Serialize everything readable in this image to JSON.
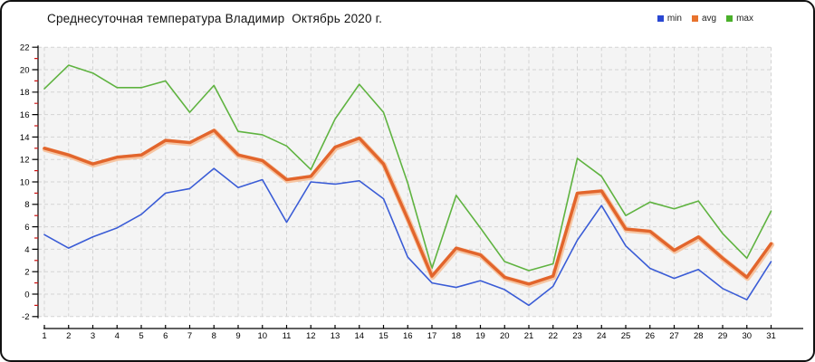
{
  "title": "Среднесуточная температура Владимир  Октябрь 2020 г.",
  "legend": {
    "items": [
      {
        "label": "min",
        "color": "#2947d2"
      },
      {
        "label": "avg",
        "color": "#e8732e"
      },
      {
        "label": "max",
        "color": "#4ab02a"
      }
    ]
  },
  "axes": {
    "y_tick_labels": [
      22,
      20,
      18,
      16,
      14,
      12,
      10,
      8,
      6,
      4,
      2,
      0,
      -2
    ],
    "y_minor_ticks": [
      21,
      19,
      17,
      15,
      13,
      11,
      9,
      7,
      5,
      3,
      1,
      -1
    ],
    "x_tick_labels": [
      1,
      2,
      3,
      4,
      5,
      6,
      7,
      8,
      9,
      10,
      11,
      12,
      13,
      14,
      15,
      16,
      17,
      18,
      19,
      20,
      21,
      22,
      23,
      24,
      25,
      26,
      27,
      28,
      29,
      30,
      31
    ],
    "axis_color": "#000000",
    "minor_tick_color": "#cc1111",
    "grid_color": "#d3d3d3",
    "plot_background": "#f4f4f4"
  },
  "chart_data": {
    "type": "line",
    "title": "Среднесуточная температура Владимир  Октябрь 2020 г.",
    "xlabel": "",
    "ylabel": "",
    "x": [
      1,
      2,
      3,
      4,
      5,
      6,
      7,
      8,
      9,
      10,
      11,
      12,
      13,
      14,
      15,
      16,
      17,
      18,
      19,
      20,
      21,
      22,
      23,
      24,
      25,
      26,
      27,
      28,
      29,
      30,
      31
    ],
    "ylim": [
      -2,
      22
    ],
    "ytick_step": 2,
    "grid": true,
    "legend_position": "top-right",
    "series": [
      {
        "name": "max",
        "color": "#5fb340",
        "width": 1.6,
        "values": [
          18.3,
          20.4,
          19.7,
          18.4,
          18.4,
          19.0,
          16.2,
          18.6,
          14.5,
          14.2,
          13.2,
          11.1,
          15.6,
          18.7,
          16.2,
          9.9,
          2.3,
          8.8,
          5.9,
          2.9,
          2.1,
          2.7,
          12.1,
          10.5,
          7.0,
          8.2,
          7.6,
          8.3,
          5.4,
          3.2,
          7.4
        ]
      },
      {
        "name": "min",
        "color": "#3a5cd6",
        "width": 1.6,
        "values": [
          5.3,
          4.1,
          5.1,
          5.9,
          7.1,
          9.0,
          9.4,
          11.2,
          9.5,
          10.2,
          6.4,
          10.0,
          9.8,
          10.1,
          8.5,
          3.3,
          1.0,
          0.6,
          1.2,
          0.4,
          -1.0,
          0.7,
          4.8,
          7.9,
          4.3,
          2.3,
          1.4,
          2.2,
          0.5,
          -0.5,
          2.9
        ]
      },
      {
        "name": "avg",
        "color": "#e2652c",
        "width": 3.4,
        "halo": "#f6c5a2",
        "values": [
          13.0,
          12.4,
          11.6,
          12.2,
          12.4,
          13.7,
          13.5,
          14.6,
          12.4,
          11.9,
          10.2,
          10.5,
          13.1,
          13.9,
          11.6,
          6.7,
          1.6,
          4.1,
          3.5,
          1.5,
          0.9,
          1.6,
          9.0,
          9.2,
          5.8,
          5.6,
          3.9,
          5.1,
          3.2,
          1.5,
          4.5
        ]
      }
    ]
  }
}
